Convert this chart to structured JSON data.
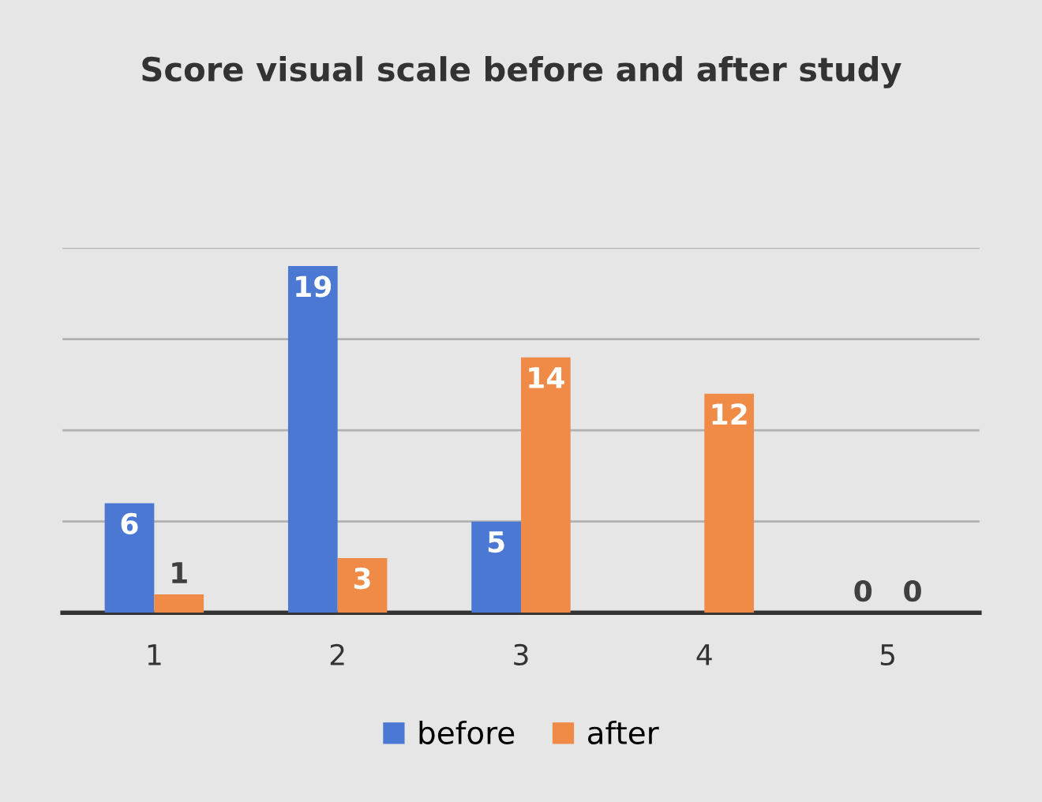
{
  "chart_data": {
    "type": "bar",
    "title": "Score visual scale before and after study",
    "categories": [
      "1",
      "2",
      "3",
      "4",
      "5"
    ],
    "series": [
      {
        "name": "before",
        "color": "#4a78d2",
        "values": [
          6,
          19,
          5,
          null,
          0
        ]
      },
      {
        "name": "after",
        "color": "#f08a47",
        "values": [
          1,
          3,
          14,
          12,
          0
        ]
      }
    ],
    "ylim": [
      0,
      20
    ],
    "yticks": [
      {
        "value": 0,
        "label": null
      },
      {
        "value": 5,
        "label": null
      },
      {
        "value": 10,
        "label": null
      },
      {
        "value": 15,
        "label": null
      },
      {
        "value": 20,
        "label": null
      }
    ],
    "grid": "y",
    "tick_labels": "x",
    "legend": "bottom",
    "data_labels": true
  }
}
